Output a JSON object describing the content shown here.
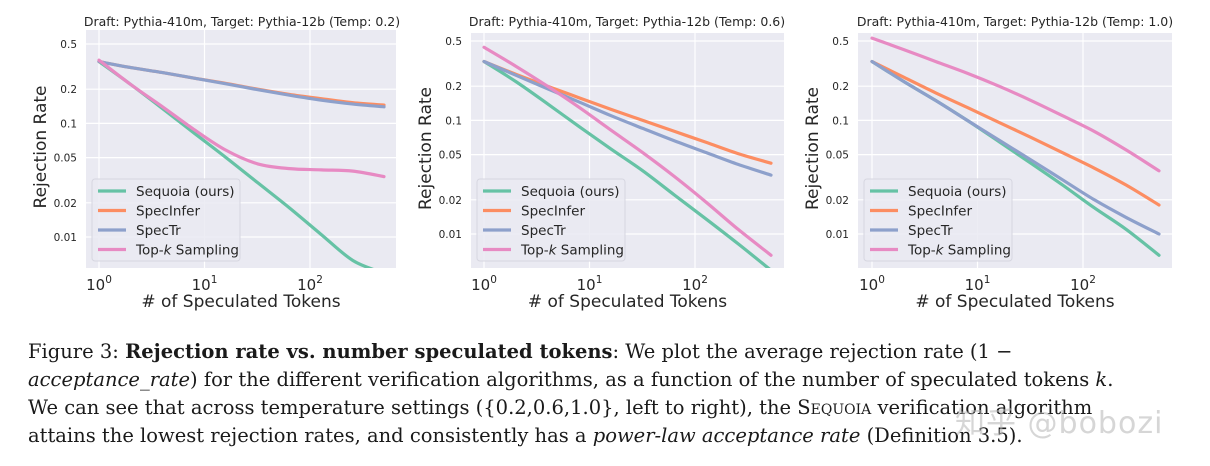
{
  "chart_data": [
    {
      "type": "line",
      "title": "Draft: Pythia-410m, Target: Pythia-12b (Temp: 0.2)",
      "xlabel": "# of Speculated Tokens",
      "ylabel": "Rejection Rate",
      "xscale": "log",
      "yscale": "log",
      "xlim": [
        0.75,
        700
      ],
      "ylim": [
        0.005,
        0.58
      ],
      "xticks": [
        "10^0",
        "10^1",
        "10^2"
      ],
      "yticks": [
        "0.5",
        "0.2",
        "0.1",
        "0.05",
        "0.02",
        "0.01"
      ],
      "grid": true,
      "legend_position": "lower left",
      "x": [
        1,
        2,
        4,
        8,
        16,
        32,
        64,
        128,
        256,
        512
      ],
      "series": [
        {
          "name": "Sequoia (ours)",
          "color": "#66c2a5",
          "values": [
            0.35,
            0.22,
            0.135,
            0.082,
            0.05,
            0.03,
            0.018,
            0.0105,
            0.0062,
            0.0048
          ]
        },
        {
          "name": "SpecInfer",
          "color": "#fc8d62",
          "values": [
            0.35,
            0.31,
            0.28,
            0.25,
            0.225,
            0.2,
            0.18,
            0.165,
            0.152,
            0.145
          ]
        },
        {
          "name": "SpecTr",
          "color": "#8da0cb",
          "values": [
            0.35,
            0.31,
            0.28,
            0.25,
            0.223,
            0.198,
            0.177,
            0.16,
            0.148,
            0.14
          ]
        },
        {
          "name": "Top-k Sampling",
          "color": "#e78ac3",
          "values": [
            0.36,
            0.22,
            0.14,
            0.088,
            0.058,
            0.044,
            0.04,
            0.039,
            0.038,
            0.034
          ]
        }
      ]
    },
    {
      "type": "line",
      "title": "Draft: Pythia-410m, Target: Pythia-12b (Temp: 0.6)",
      "xlabel": "# of Speculated Tokens",
      "ylabel": "Rejection Rate",
      "xscale": "log",
      "yscale": "log",
      "xlim": [
        0.75,
        700
      ],
      "ylim": [
        0.005,
        0.58
      ],
      "xticks": [
        "10^0",
        "10^1",
        "10^2"
      ],
      "yticks": [
        "0.5",
        "0.2",
        "0.1",
        "0.05",
        "0.02",
        "0.01"
      ],
      "grid": true,
      "legend_position": "lower left",
      "x": [
        1,
        2,
        4,
        8,
        16,
        32,
        64,
        128,
        256,
        512
      ],
      "series": [
        {
          "name": "Sequoia (ours)",
          "color": "#66c2a5",
          "values": [
            0.33,
            0.22,
            0.14,
            0.088,
            0.056,
            0.036,
            0.022,
            0.0135,
            0.0082,
            0.0048
          ]
        },
        {
          "name": "SpecInfer",
          "color": "#fc8d62",
          "values": [
            0.33,
            0.255,
            0.2,
            0.158,
            0.125,
            0.1,
            0.08,
            0.064,
            0.051,
            0.042
          ]
        },
        {
          "name": "SpecTr",
          "color": "#8da0cb",
          "values": [
            0.33,
            0.25,
            0.19,
            0.145,
            0.11,
            0.085,
            0.066,
            0.052,
            0.041,
            0.033
          ]
        },
        {
          "name": "Top-k Sampling",
          "color": "#e78ac3",
          "values": [
            0.44,
            0.3,
            0.2,
            0.13,
            0.082,
            0.052,
            0.032,
            0.019,
            0.011,
            0.0065
          ]
        }
      ]
    },
    {
      "type": "line",
      "title": "Draft: Pythia-410m, Target: Pythia-12b (Temp: 1.0)",
      "xlabel": "# of Speculated Tokens",
      "ylabel": "Rejection Rate",
      "xscale": "log",
      "yscale": "log",
      "xlim": [
        0.75,
        700
      ],
      "ylim": [
        0.005,
        0.58
      ],
      "xticks": [
        "10^0",
        "10^1",
        "10^2"
      ],
      "yticks": [
        "0.5",
        "0.2",
        "0.1",
        "0.05",
        "0.02",
        "0.01"
      ],
      "grid": true,
      "legend_position": "lower left",
      "x": [
        1,
        2,
        4,
        8,
        16,
        32,
        64,
        128,
        256,
        512
      ],
      "series": [
        {
          "name": "Sequoia (ours)",
          "color": "#66c2a5",
          "values": [
            0.33,
            0.22,
            0.15,
            0.1,
            0.065,
            0.042,
            0.027,
            0.017,
            0.011,
            0.0065
          ]
        },
        {
          "name": "SpecInfer",
          "color": "#fc8d62",
          "values": [
            0.33,
            0.24,
            0.175,
            0.13,
            0.096,
            0.071,
            0.052,
            0.038,
            0.027,
            0.018
          ]
        },
        {
          "name": "SpecTr",
          "color": "#8da0cb",
          "values": [
            0.33,
            0.22,
            0.15,
            0.1,
            0.067,
            0.045,
            0.03,
            0.02,
            0.014,
            0.01
          ]
        },
        {
          "name": "Top-k Sampling",
          "color": "#e78ac3",
          "values": [
            0.53,
            0.42,
            0.33,
            0.26,
            0.2,
            0.15,
            0.11,
            0.08,
            0.055,
            0.036
          ]
        }
      ]
    }
  ],
  "caption": {
    "figure_label": "Figure 3:",
    "bold_title": "Rejection rate vs.  number speculated tokens",
    "line1_rest": ":  We plot the average rejection rate (1 −",
    "line2_italic": "acceptance_rate",
    "line2_rest": ") for the different verification algorithms, as a function of the number of speculated tokens ",
    "line2_k": "k",
    "line2_end": ".",
    "line3_start": "We can see that across temperature settings ({0.2,0.6,1.0}, left to right), the ",
    "line3_sequoia": "Sequoia",
    "line3_end": " verification algorithm",
    "line4_start": "attains the lowest rejection rates, and consistently has a ",
    "line4_italic": "power-law acceptance rate",
    "line4_end": " (Definition 3.5)."
  },
  "watermark": "知乎 @bobozi"
}
